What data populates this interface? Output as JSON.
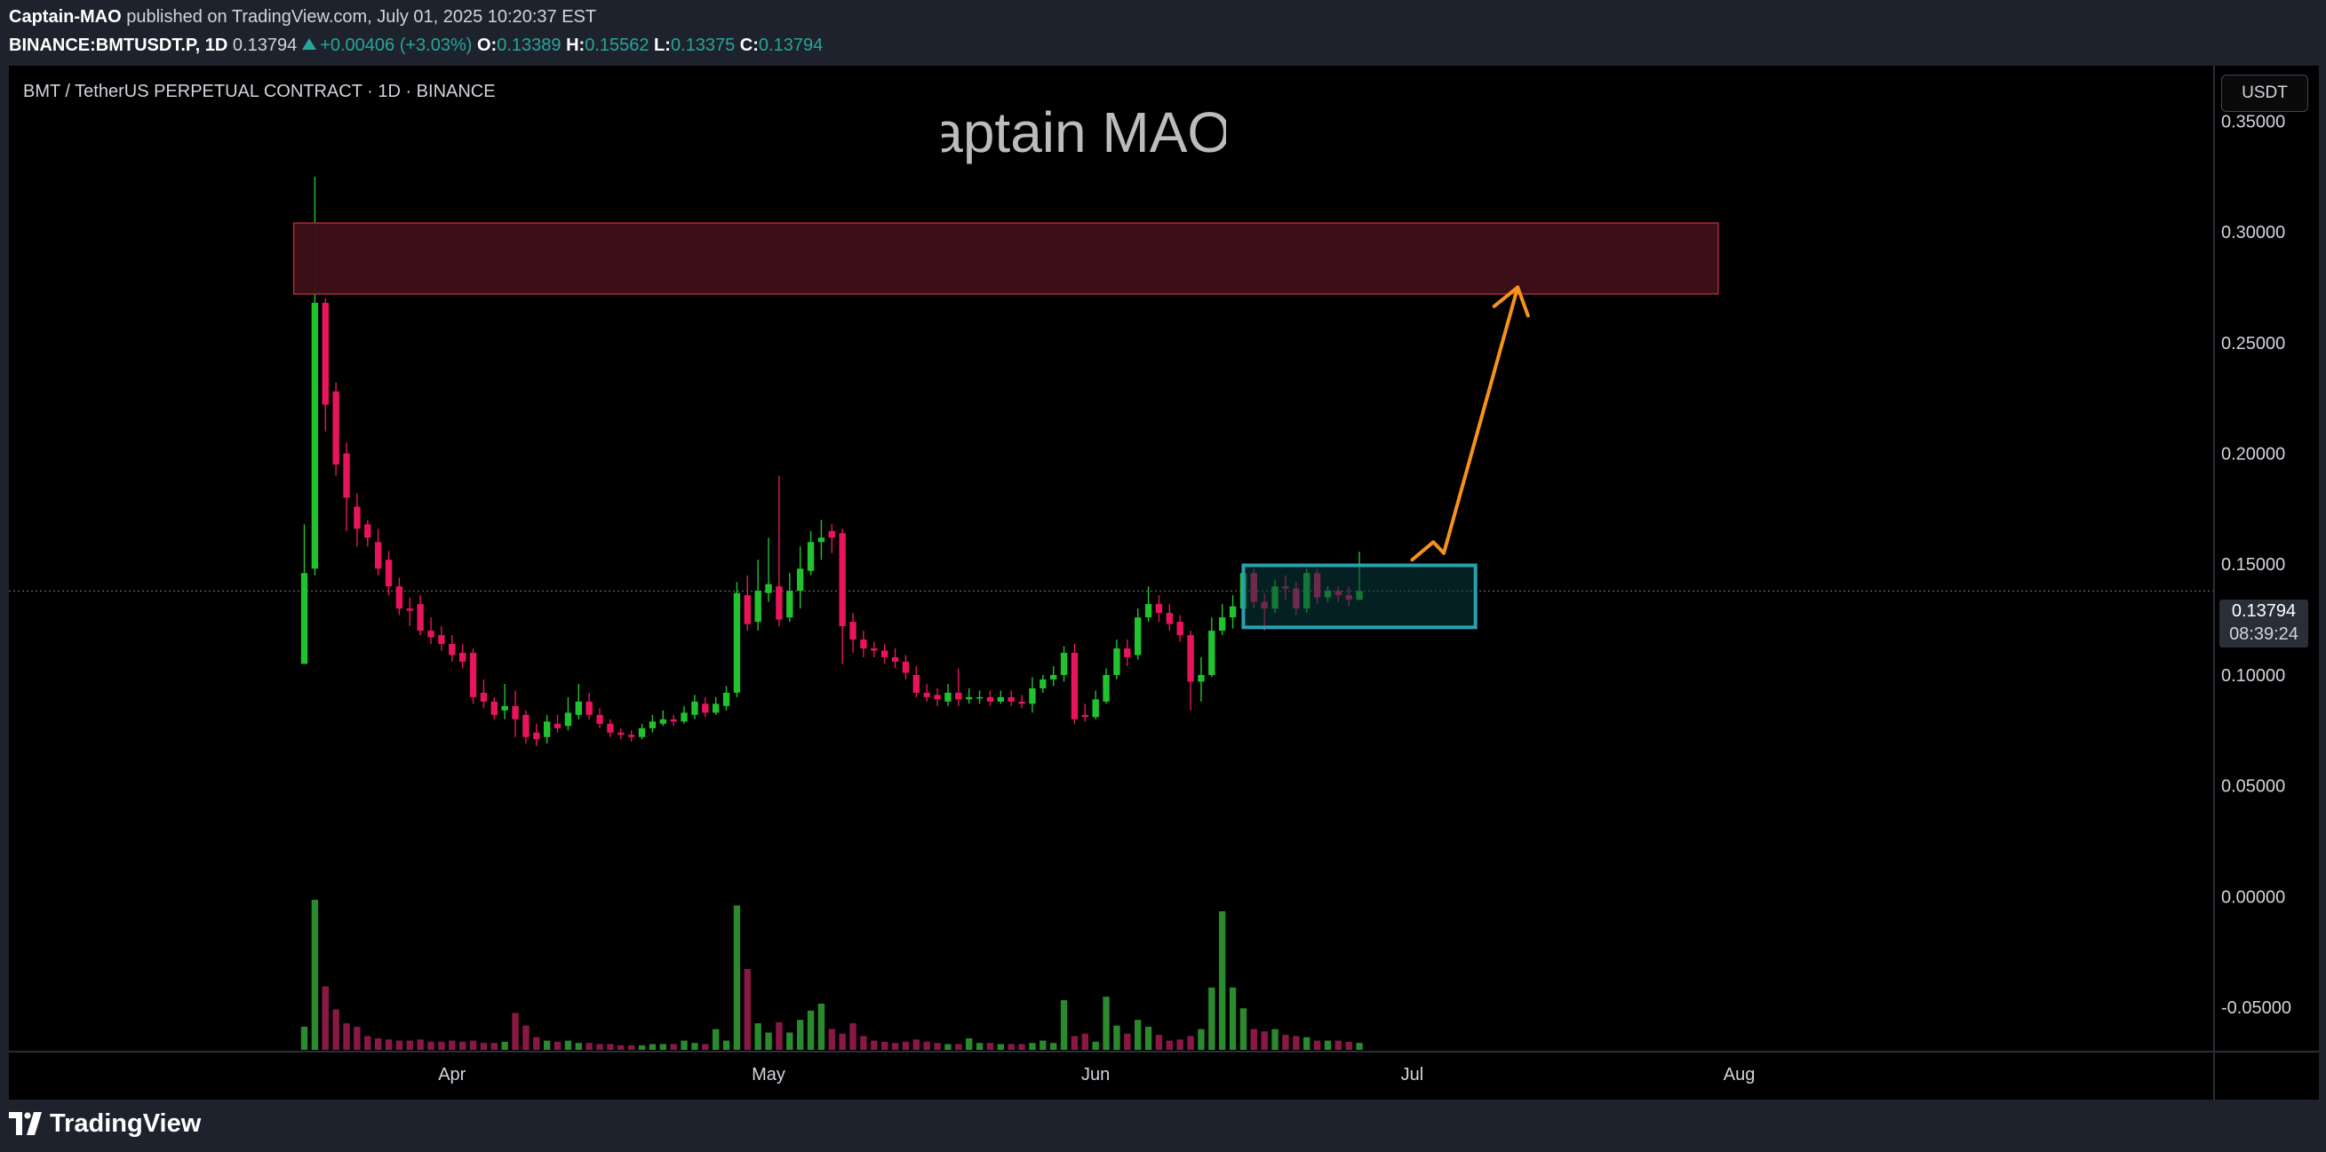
{
  "header": {
    "author": "Captain-MAO",
    "published_text": "published on TradingView.com, July 01, 2025 10:20:37 EST",
    "symbol": "BINANCE:BMTUSDT.P, 1D",
    "last": "0.13794",
    "change": "+0.00406 (+3.03%)",
    "o_label": "O:",
    "o": "0.13389",
    "h_label": "H:",
    "h": "0.15562",
    "l_label": "L:",
    "l": "0.13375",
    "c_label": "C:",
    "c": "0.13794"
  },
  "pane_title": "BMT / TetherUS PERPETUAL CONTRACT · 1D · BINANCE",
  "currency_button": "USDT",
  "watermark": "Captain MAO",
  "price_tag": {
    "price": "0.13794",
    "countdown": "08:39:24"
  },
  "footer": {
    "brand": "TradingView"
  },
  "colors": {
    "up": "#22c22e",
    "down": "#e8155b",
    "vol_up": "#2a8a2d",
    "vol_down": "#8a1845",
    "resistance_fill": "#3f0f18",
    "resistance_border": "#b0283a",
    "range_fill": "#0a3a40",
    "range_border": "#2aa0b0",
    "arrow": "#f7931a"
  },
  "chart_data": {
    "type": "candlestick",
    "interval": "1D",
    "y_ticks": [
      "0.35000",
      "0.30000",
      "0.25000",
      "0.20000",
      "0.15000",
      "0.10000",
      "0.05000",
      "0.00000",
      "-0.05000"
    ],
    "y_tick_values": [
      0.35,
      0.3,
      0.25,
      0.2,
      0.15,
      0.1,
      0.05,
      0.0,
      -0.05
    ],
    "ylim": [
      -0.07,
      0.375
    ],
    "x_ticks": [
      {
        "label": "Apr",
        "date": "2025-04-01"
      },
      {
        "label": "May",
        "date": "2025-05-01"
      },
      {
        "label": "Jun",
        "date": "2025-06-01"
      },
      {
        "label": "Jul",
        "date": "2025-07-01"
      },
      {
        "label": "Aug",
        "date": "2025-08-01"
      }
    ],
    "first_date": "2025-03-18",
    "x_range": [
      "2025-02-18",
      "2025-09-15"
    ],
    "last_price": 0.13794,
    "candles": [
      [
        0.105,
        0.146,
        0.168,
        0.11,
        2.0
      ],
      [
        0.148,
        0.268,
        0.325,
        0.145,
        13.0
      ],
      [
        0.268,
        0.222,
        0.27,
        0.21,
        5.5
      ],
      [
        0.228,
        0.195,
        0.232,
        0.19,
        3.5
      ],
      [
        0.2,
        0.18,
        0.205,
        0.165,
        2.3
      ],
      [
        0.176,
        0.166,
        0.182,
        0.158,
        2.0
      ],
      [
        0.168,
        0.162,
        0.17,
        0.158,
        1.2
      ],
      [
        0.16,
        0.148,
        0.166,
        0.145,
        1.0
      ],
      [
        0.152,
        0.14,
        0.156,
        0.136,
        0.9
      ],
      [
        0.14,
        0.13,
        0.144,
        0.127,
        0.8
      ],
      [
        0.13,
        0.129,
        0.135,
        0.122,
        0.8
      ],
      [
        0.132,
        0.12,
        0.136,
        0.118,
        0.9
      ],
      [
        0.12,
        0.117,
        0.126,
        0.114,
        0.7
      ],
      [
        0.118,
        0.114,
        0.122,
        0.111,
        0.7
      ],
      [
        0.114,
        0.109,
        0.118,
        0.106,
        0.8
      ],
      [
        0.11,
        0.106,
        0.114,
        0.103,
        0.7
      ],
      [
        0.11,
        0.09,
        0.112,
        0.087,
        0.8
      ],
      [
        0.092,
        0.088,
        0.098,
        0.085,
        0.6
      ],
      [
        0.088,
        0.082,
        0.09,
        0.08,
        0.6
      ],
      [
        0.084,
        0.086,
        0.096,
        0.08,
        0.7
      ],
      [
        0.086,
        0.08,
        0.093,
        0.072,
        3.2
      ],
      [
        0.082,
        0.072,
        0.084,
        0.069,
        2.1
      ],
      [
        0.074,
        0.071,
        0.078,
        0.068,
        1.1
      ],
      [
        0.072,
        0.079,
        0.082,
        0.069,
        0.8
      ],
      [
        0.078,
        0.076,
        0.082,
        0.074,
        0.7
      ],
      [
        0.077,
        0.083,
        0.09,
        0.075,
        0.8
      ],
      [
        0.082,
        0.088,
        0.096,
        0.08,
        0.6
      ],
      [
        0.088,
        0.082,
        0.092,
        0.08,
        0.6
      ],
      [
        0.082,
        0.078,
        0.085,
        0.076,
        0.5
      ],
      [
        0.078,
        0.074,
        0.08,
        0.072,
        0.5
      ],
      [
        0.074,
        0.073,
        0.076,
        0.071,
        0.4
      ],
      [
        0.073,
        0.072,
        0.075,
        0.07,
        0.4
      ],
      [
        0.072,
        0.076,
        0.078,
        0.071,
        0.4
      ],
      [
        0.076,
        0.079,
        0.082,
        0.074,
        0.5
      ],
      [
        0.078,
        0.08,
        0.084,
        0.077,
        0.5
      ],
      [
        0.08,
        0.079,
        0.082,
        0.077,
        0.5
      ],
      [
        0.079,
        0.083,
        0.086,
        0.078,
        0.8
      ],
      [
        0.082,
        0.088,
        0.091,
        0.08,
        0.6
      ],
      [
        0.087,
        0.083,
        0.09,
        0.081,
        0.5
      ],
      [
        0.083,
        0.087,
        0.09,
        0.082,
        1.8
      ],
      [
        0.086,
        0.092,
        0.095,
        0.084,
        0.8
      ],
      [
        0.092,
        0.137,
        0.142,
        0.09,
        12.5
      ],
      [
        0.136,
        0.123,
        0.145,
        0.12,
        7.0
      ],
      [
        0.124,
        0.138,
        0.152,
        0.12,
        2.3
      ],
      [
        0.137,
        0.141,
        0.162,
        0.133,
        1.5
      ],
      [
        0.14,
        0.125,
        0.19,
        0.122,
        2.4
      ],
      [
        0.126,
        0.138,
        0.146,
        0.124,
        1.5
      ],
      [
        0.138,
        0.148,
        0.158,
        0.13,
        2.6
      ],
      [
        0.147,
        0.16,
        0.165,
        0.145,
        3.4
      ],
      [
        0.16,
        0.162,
        0.17,
        0.152,
        4.0
      ],
      [
        0.165,
        0.162,
        0.168,
        0.155,
        1.8
      ],
      [
        0.164,
        0.122,
        0.166,
        0.105,
        1.4
      ],
      [
        0.124,
        0.116,
        0.128,
        0.11,
        2.3
      ],
      [
        0.116,
        0.112,
        0.12,
        0.108,
        1.2
      ],
      [
        0.112,
        0.111,
        0.115,
        0.108,
        0.8
      ],
      [
        0.111,
        0.108,
        0.114,
        0.105,
        0.7
      ],
      [
        0.108,
        0.106,
        0.112,
        0.103,
        0.6
      ],
      [
        0.106,
        0.101,
        0.109,
        0.098,
        0.7
      ],
      [
        0.1,
        0.092,
        0.104,
        0.09,
        0.9
      ],
      [
        0.092,
        0.09,
        0.096,
        0.088,
        0.7
      ],
      [
        0.091,
        0.089,
        0.094,
        0.086,
        0.6
      ],
      [
        0.088,
        0.092,
        0.096,
        0.086,
        0.5
      ],
      [
        0.092,
        0.089,
        0.103,
        0.086,
        0.5
      ],
      [
        0.089,
        0.09,
        0.094,
        0.087,
        1.0
      ],
      [
        0.09,
        0.09,
        0.093,
        0.087,
        0.6
      ],
      [
        0.09,
        0.088,
        0.093,
        0.086,
        0.6
      ],
      [
        0.088,
        0.09,
        0.093,
        0.087,
        0.5
      ],
      [
        0.09,
        0.088,
        0.093,
        0.086,
        0.5
      ],
      [
        0.088,
        0.087,
        0.091,
        0.085,
        0.5
      ],
      [
        0.087,
        0.094,
        0.099,
        0.083,
        0.6
      ],
      [
        0.094,
        0.098,
        0.1,
        0.092,
        0.8
      ],
      [
        0.098,
        0.1,
        0.104,
        0.095,
        0.6
      ],
      [
        0.1,
        0.11,
        0.113,
        0.097,
        4.3
      ],
      [
        0.11,
        0.08,
        0.114,
        0.078,
        1.2
      ],
      [
        0.082,
        0.081,
        0.087,
        0.079,
        1.4
      ],
      [
        0.081,
        0.089,
        0.093,
        0.08,
        0.7
      ],
      [
        0.088,
        0.1,
        0.103,
        0.087,
        4.6
      ],
      [
        0.1,
        0.112,
        0.116,
        0.098,
        2.1
      ],
      [
        0.112,
        0.108,
        0.116,
        0.104,
        1.4
      ],
      [
        0.109,
        0.126,
        0.13,
        0.107,
        2.6
      ],
      [
        0.126,
        0.132,
        0.14,
        0.124,
        2.0
      ],
      [
        0.132,
        0.128,
        0.136,
        0.124,
        1.3
      ],
      [
        0.128,
        0.123,
        0.132,
        0.12,
        0.8
      ],
      [
        0.124,
        0.118,
        0.127,
        0.115,
        0.9
      ],
      [
        0.118,
        0.097,
        0.12,
        0.084,
        1.2
      ],
      [
        0.097,
        0.1,
        0.108,
        0.088,
        1.8
      ],
      [
        0.1,
        0.12,
        0.126,
        0.099,
        5.4
      ],
      [
        0.12,
        0.126,
        0.132,
        0.118,
        12.0
      ],
      [
        0.126,
        0.131,
        0.136,
        0.121,
        5.4
      ],
      [
        0.13,
        0.146,
        0.148,
        0.128,
        3.6
      ],
      [
        0.146,
        0.133,
        0.148,
        0.13,
        1.8
      ],
      [
        0.133,
        0.13,
        0.137,
        0.12,
        1.6
      ],
      [
        0.13,
        0.14,
        0.143,
        0.128,
        1.8
      ],
      [
        0.14,
        0.139,
        0.145,
        0.134,
        1.3
      ],
      [
        0.139,
        0.13,
        0.142,
        0.127,
        1.2
      ],
      [
        0.13,
        0.146,
        0.148,
        0.128,
        1.1
      ],
      [
        0.146,
        0.135,
        0.148,
        0.132,
        0.8
      ],
      [
        0.135,
        0.138,
        0.14,
        0.133,
        0.8
      ],
      [
        0.138,
        0.136,
        0.14,
        0.133,
        0.8
      ],
      [
        0.136,
        0.134,
        0.14,
        0.131,
        0.7
      ],
      [
        0.134,
        0.13794,
        0.15562,
        0.13375,
        0.6
      ]
    ],
    "annotations": {
      "resistance_zone": {
        "from_date": "2025-03-17",
        "to_date": "2025-07-30",
        "low": 0.272,
        "high": 0.304
      },
      "range_box": {
        "from_date": "2025-06-15",
        "to_date": "2025-07-07",
        "low": 0.1215,
        "high": 0.1495
      },
      "arrow_path": [
        {
          "date": "2025-07-01",
          "price": 0.152
        },
        {
          "date": "2025-07-03",
          "price": 0.16
        },
        {
          "date": "2025-07-04",
          "price": 0.155
        },
        {
          "date": "2025-07-11",
          "price": 0.275
        }
      ]
    }
  }
}
